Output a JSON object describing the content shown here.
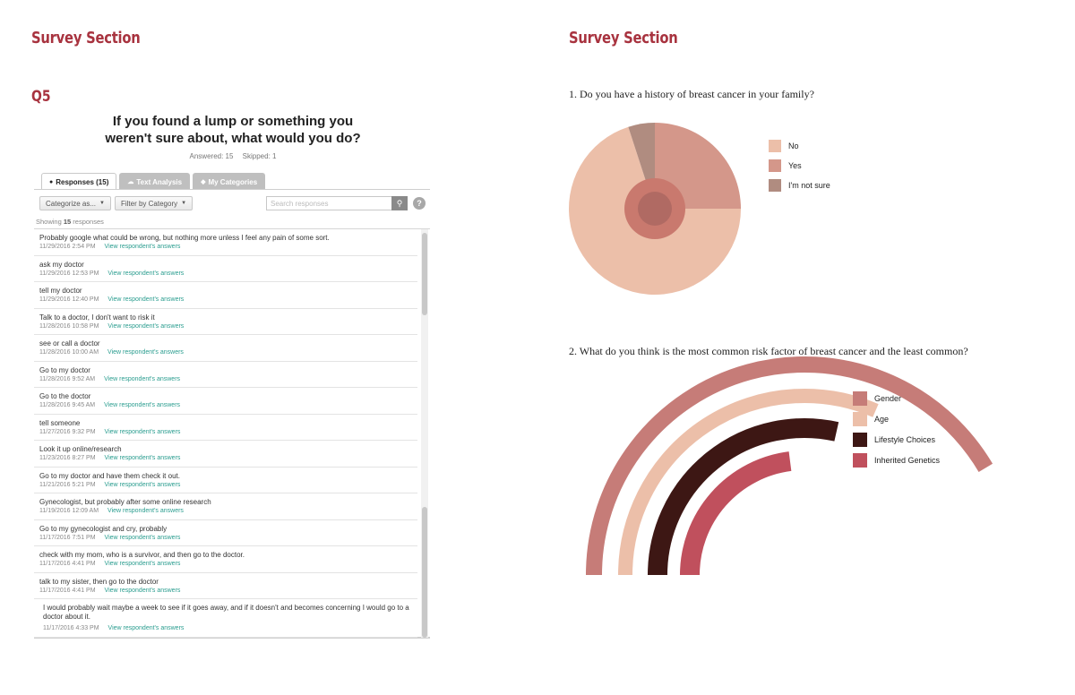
{
  "left_page": {
    "section_title": "Survey Section",
    "question_label": "Q5",
    "question_text": "If you found a lump or something you\nweren't sure about, what would you do?",
    "answered": "Answered: 15",
    "skipped": "Skipped: 1",
    "tabs": [
      {
        "label": "Responses (15)",
        "icon": "speech-bubble-icon",
        "active": true
      },
      {
        "label": "Text Analysis",
        "icon": "cloud-icon",
        "active": false
      },
      {
        "label": "My Categories",
        "icon": "tag-icon",
        "active": false
      }
    ],
    "toolbar": {
      "categorize": "Categorize as...",
      "filter": "Filter by Category",
      "search_placeholder": "Search responses",
      "help": "?"
    },
    "showing_prefix": "Showing ",
    "showing_count": "15",
    "showing_suffix": " responses",
    "link_label": "View respondent's answers",
    "responses": [
      {
        "text": "Probably google what could be wrong, but nothing more unless I feel any pain of some sort.",
        "date": "11/29/2016 2:54 PM"
      },
      {
        "text": "ask my doctor",
        "date": "11/29/2016 12:53 PM"
      },
      {
        "text": "tell my doctor",
        "date": "11/29/2016 12:40 PM"
      },
      {
        "text": "Talk to a doctor, I don't want to risk it",
        "date": "11/28/2016 10:58 PM"
      },
      {
        "text": "see or call a doctor",
        "date": "11/28/2016 10:00 AM"
      },
      {
        "text": "Go to my doctor",
        "date": "11/28/2016 9:52 AM"
      },
      {
        "text": "Go to the doctor",
        "date": "11/28/2016 9:45 AM"
      },
      {
        "text": "tell someone",
        "date": "11/27/2016 9:32 PM"
      },
      {
        "text": "Look it up online/research",
        "date": "11/23/2016 8:27 PM"
      },
      {
        "text": "Go to my doctor and have them check it out.",
        "date": "11/21/2016 5:21 PM"
      },
      {
        "text": "Gynecologist, but probably after some online research",
        "date": "11/19/2016 12:09 AM"
      },
      {
        "text": "Go to my gynecologist and cry, probably",
        "date": "11/17/2016 7:51 PM"
      },
      {
        "text": "check with my mom, who is a survivor, and then go to the doctor.",
        "date": "11/17/2016 4:41 PM"
      },
      {
        "text": "talk to my sister, then go to the doctor",
        "date": "11/17/2016 4:41 PM"
      },
      {
        "text": "I would probably wait maybe a week to see if it goes away, and if it doesn't and becomes concerning I would go to a doctor about it.",
        "date": "11/17/2016 4:33 PM"
      }
    ]
  },
  "right_page": {
    "section_title": "Survey Section",
    "q1": "1. Do you have a history of breast cancer in your family?",
    "q2": "2. What do you think is the most common risk factor of breast cancer and the least common?"
  },
  "chart_data": [
    {
      "type": "pie",
      "title": "1. Do you have a history of breast cancer in your family?",
      "categories": [
        "No",
        "Yes",
        "I'm not sure"
      ],
      "values": [
        70,
        25,
        5
      ],
      "colors": [
        "#ecbfa9",
        "#d4978a",
        "#b08c80"
      ],
      "center_colors": [
        "#c9796e",
        "#b06a63"
      ],
      "legend": "right"
    },
    {
      "type": "radial-bar",
      "title": "2. What do you think is the most common risk factor of breast cancer and the least common?",
      "categories": [
        "Gender",
        "Age",
        "Lifestyle Choices",
        "Inherited Genetics"
      ],
      "values": [
        83,
        63,
        57,
        46
      ],
      "colors": [
        "#c67c78",
        "#ecbfa9",
        "#3d1714",
        "#c0505d"
      ],
      "legend": "right"
    }
  ]
}
